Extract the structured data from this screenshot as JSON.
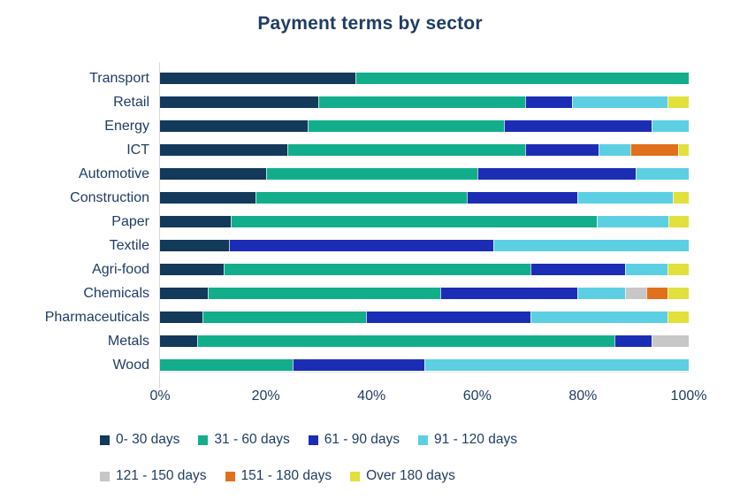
{
  "title": "Payment terms by sector",
  "colors": {
    "text": "#1F3C64",
    "axis_line": "#D9D9D9",
    "background": "#FFFFFF"
  },
  "chart_data": {
    "type": "bar",
    "orientation": "horizontal",
    "stacked": true,
    "unit": "percent",
    "title": "Payment terms by sector",
    "grid": false,
    "legend_position": "bottom",
    "legend_rows": [
      4,
      3
    ],
    "categories": [
      "Transport",
      "Retail",
      "Energy",
      "ICT",
      "Automotive",
      "Construction",
      "Paper",
      "Textile",
      "Agri-food",
      "Chemicals",
      "Pharmaceuticals",
      "Metals",
      "Wood"
    ],
    "series": [
      {
        "name": "0- 30 days",
        "color": "#13395B",
        "values": [
          37,
          30,
          28,
          24,
          20,
          18,
          14,
          13,
          12,
          9,
          8,
          7,
          0
        ]
      },
      {
        "name": "31 - 60 days",
        "color": "#12AE8C",
        "values": [
          63,
          39,
          37,
          45,
          40,
          40,
          72,
          0,
          58,
          44,
          31,
          79,
          25
        ]
      },
      {
        "name": "61 - 90 days",
        "color": "#1C2DB5",
        "values": [
          0,
          9,
          28,
          14,
          30,
          21,
          0,
          50,
          18,
          26,
          31,
          7,
          25
        ]
      },
      {
        "name": "91 - 120 days",
        "color": "#5CCFE3",
        "values": [
          0,
          18,
          7,
          6,
          10,
          18,
          14,
          37,
          8,
          9,
          26,
          0,
          50
        ]
      },
      {
        "name": "121 - 150 days",
        "color": "#C7C7C7",
        "values": [
          0,
          0,
          0,
          0,
          0,
          0,
          0,
          0,
          0,
          4,
          0,
          7,
          0
        ]
      },
      {
        "name": "151 - 180 days",
        "color": "#E1701D",
        "values": [
          0,
          0,
          0,
          9,
          0,
          0,
          0,
          0,
          0,
          4,
          0,
          0,
          0
        ]
      },
      {
        "name": "Over 180 days",
        "color": "#E1E03C",
        "values": [
          0,
          4,
          0,
          2,
          0,
          3,
          4,
          0,
          4,
          4,
          4,
          0,
          0
        ]
      }
    ],
    "xaxis": {
      "ticks": [
        "0%",
        "20%",
        "40%",
        "60%",
        "80%",
        "100%"
      ],
      "range": [
        0,
        100
      ]
    }
  }
}
